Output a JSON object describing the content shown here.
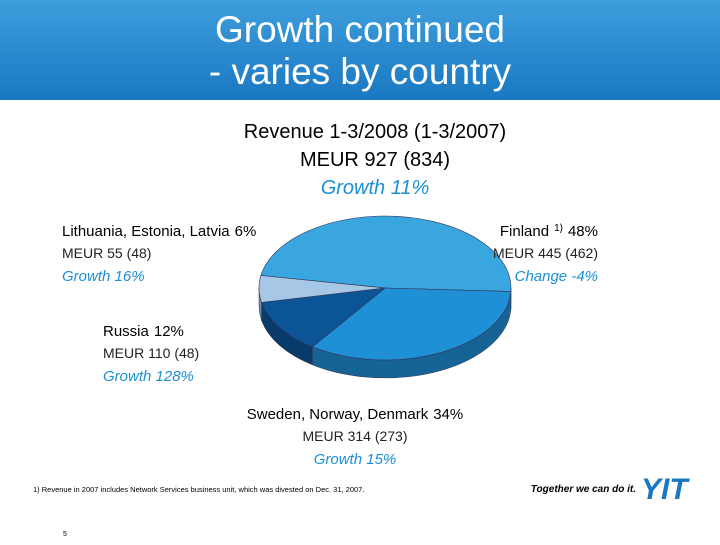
{
  "header": {
    "title_lines": [
      "Growth continued",
      "- varies by country"
    ]
  },
  "chart_data": {
    "type": "pie",
    "title": "Revenue 1-3/2008 (1-3/2007)",
    "subtitle": "MEUR 927 (834)",
    "total_growth": "Growth 11%",
    "categories": [
      "Finland",
      "Sweden, Norway, Denmark",
      "Russia",
      "Lithuania, Estonia, Latvia"
    ],
    "values": [
      48,
      34,
      12,
      6
    ],
    "value_labels": [
      "48%",
      "34%",
      "12%",
      "6%"
    ],
    "footnote_mark": "1)",
    "details": [
      "MEUR 445 (462)",
      "MEUR 314 (273)",
      "MEUR 110 (48)",
      "MEUR 55 (48)"
    ],
    "changes": [
      "Change -4%",
      "Growth 15%",
      "Growth 128%",
      "Growth 16%"
    ],
    "colors": [
      "#3aa6e0",
      "#1f8fd6",
      "#0b5496",
      "#a6c8e6"
    ]
  },
  "footer": {
    "footnote": "1) Revenue in 2007 includes Network Services business unit, which was divested on Dec. 31, 2007.",
    "slogan": "Together we can do it.",
    "logo": "YIT",
    "page": "5"
  }
}
